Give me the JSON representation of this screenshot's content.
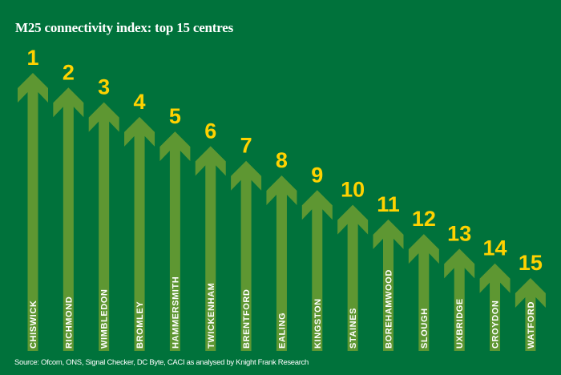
{
  "colors": {
    "background": "#00723b",
    "arrow": "#5e9732",
    "rank": "#ffd200",
    "text": "#ffffff"
  },
  "chart_data": {
    "type": "bar",
    "title": "M25 connectivity index: top 15 centres",
    "source": "Source: Ofcom, ONS, Signal Checker, DC Byte, CACI as analysed by Knight Frank Research",
    "categories": [
      "CHISWICK",
      "RICHMOND",
      "WIMBLEDON",
      "BROMLEY",
      "HAMMERSMITH",
      "TWICKENHAM",
      "BRENTFORD",
      "EALING",
      "KINGSTON",
      "STAINES",
      "BOREHAMWOOD",
      "SLOUGH",
      "UXBRIDGE",
      "CROYDON",
      "WATFORD"
    ],
    "ranks": [
      1,
      2,
      3,
      4,
      5,
      6,
      7,
      8,
      9,
      10,
      11,
      12,
      13,
      14,
      15
    ],
    "xlabel": "",
    "ylabel": "",
    "grid": false
  }
}
